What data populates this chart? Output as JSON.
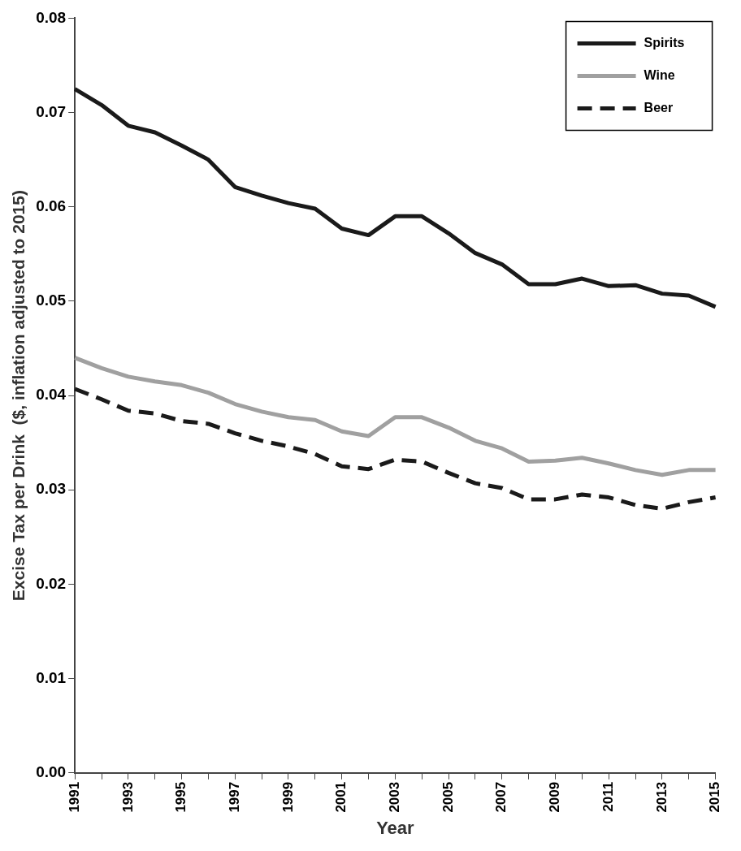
{
  "chart_data": {
    "type": "line",
    "xlabel": "Year",
    "ylabel": "Excise Tax per Drink  ($, inflation adjusted to 2015)",
    "categories": [
      "1991",
      null,
      "1993",
      null,
      "1995",
      null,
      "1997",
      null,
      "1999",
      null,
      "2001",
      null,
      "2003",
      null,
      "2005",
      null,
      "2007",
      null,
      "2009",
      null,
      "2011",
      null,
      "2013",
      null,
      "2015"
    ],
    "series": [
      {
        "name": "Spirits",
        "color": "#1a1a1a",
        "line_style": "solid",
        "values": [
          0.0725,
          0.0708,
          0.0686,
          0.0679,
          0.0665,
          0.065,
          0.0621,
          0.0612,
          0.0604,
          0.0598,
          0.0577,
          0.057,
          0.059,
          0.059,
          0.0572,
          0.0551,
          0.0539,
          0.0518,
          0.0518,
          0.0524,
          0.0516,
          0.0517,
          0.0508,
          0.0506,
          0.0494
        ]
      },
      {
        "name": "Wine",
        "color": "#a0a0a0",
        "line_style": "solid",
        "values": [
          0.044,
          0.0429,
          0.042,
          0.0415,
          0.0411,
          0.0403,
          0.0391,
          0.0383,
          0.0377,
          0.0374,
          0.0362,
          0.0357,
          0.0377,
          0.0377,
          0.0366,
          0.0352,
          0.0344,
          0.033,
          0.0331,
          0.0334,
          0.0328,
          0.0321,
          0.0316,
          0.0321,
          0.0321
        ]
      },
      {
        "name": "Beer",
        "color": "#1a1a1a",
        "line_style": "dashed",
        "values": [
          0.0407,
          0.0396,
          0.0384,
          0.0381,
          0.0373,
          0.037,
          0.036,
          0.0352,
          0.0346,
          0.0338,
          0.0325,
          0.0322,
          0.0332,
          0.033,
          0.0318,
          0.0307,
          0.0302,
          0.029,
          0.029,
          0.0295,
          0.0292,
          0.0284,
          0.028,
          0.0287,
          0.0292
        ]
      }
    ],
    "ylim": [
      0,
      0.08
    ],
    "yticks": [
      {
        "value": 0,
        "label": "0.00"
      },
      0.01,
      0.02,
      0.03,
      0.04,
      0.05,
      0.06,
      0.07,
      0.08
    ],
    "grid": false,
    "legend": "top right",
    "marker": "none"
  }
}
